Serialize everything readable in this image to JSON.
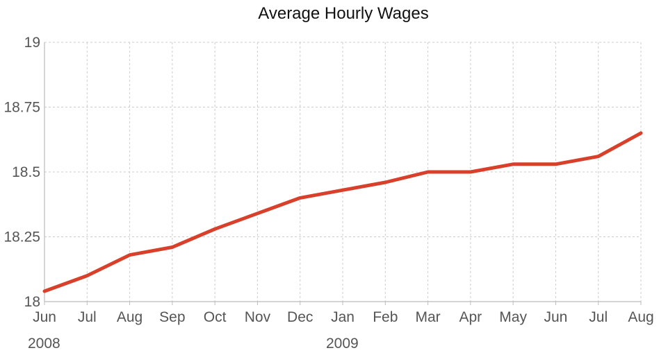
{
  "chart_data": {
    "type": "line",
    "title": "Average Hourly Wages",
    "xlabel": "",
    "ylabel": "",
    "categories": [
      "Jun",
      "Jul",
      "Aug",
      "Sep",
      "Oct",
      "Nov",
      "Dec",
      "Jan",
      "Feb",
      "Mar",
      "Apr",
      "May",
      "Jun",
      "Jul",
      "Aug"
    ],
    "year_labels": [
      {
        "label": "2008",
        "index": 0
      },
      {
        "label": "2009",
        "index": 7
      }
    ],
    "series": [
      {
        "values": [
          18.04,
          18.1,
          18.18,
          18.21,
          18.28,
          18.34,
          18.4,
          18.43,
          18.46,
          18.5,
          18.5,
          18.53,
          18.53,
          18.56,
          18.65
        ]
      }
    ],
    "yticks": [
      18,
      18.25,
      18.5,
      18.75,
      19
    ],
    "ylim": [
      18,
      19
    ],
    "grid": true,
    "legend": "none",
    "colors": {
      "line": "#d9402b",
      "grid": "#cccccc",
      "axis": "#bbbbbb",
      "tick_text": "#555555"
    }
  }
}
